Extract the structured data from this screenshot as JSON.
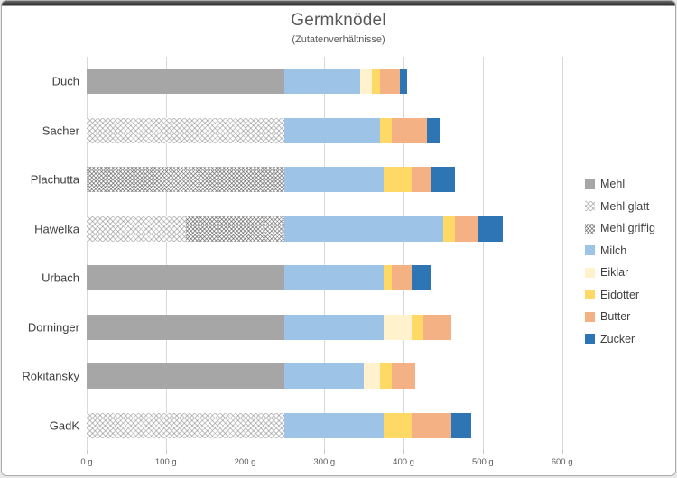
{
  "chart": {
    "title": "Germknödel",
    "subtitle": "(Zutatenverhältnisse)"
  },
  "chart_data": {
    "type": "bar",
    "orientation": "horizontal",
    "stacked": true,
    "title": "Germknödel",
    "subtitle": "(Zutatenverhältnisse)",
    "xlabel": "",
    "ylabel": "",
    "unit": "g",
    "xlim": [
      0,
      605
    ],
    "grid": "vertical-only",
    "gridline_color": "#d9d9d9",
    "legend_position": "right",
    "x_tick_values": [
      0,
      100,
      200,
      300,
      400,
      500,
      600
    ],
    "x_ticks": [
      "0 g",
      "100 g",
      "200 g",
      "300 g",
      "400 g",
      "500 g",
      "600 g"
    ],
    "categories": [
      "Duch",
      "Sacher",
      "Plachutta",
      "Hawelka",
      "Urbach",
      "Dorninger",
      "Rokitansky",
      "GadK"
    ],
    "series": [
      {
        "name": "Mehl",
        "color": "#a6a6a6",
        "pattern": "solid",
        "values": [
          250,
          0,
          0,
          0,
          250,
          250,
          250,
          0
        ]
      },
      {
        "name": "Mehl glatt",
        "color": "#ffffff",
        "pattern": "glatt",
        "values": [
          0,
          250,
          0,
          125,
          0,
          0,
          0,
          250
        ]
      },
      {
        "name": "Mehl griffig",
        "color": "#ffffff",
        "pattern": "griffig",
        "values": [
          0,
          0,
          250,
          125,
          0,
          0,
          0,
          0
        ]
      },
      {
        "name": "Milch",
        "color": "#9dc3e6",
        "pattern": "solid",
        "values": [
          95,
          120,
          125,
          200,
          125,
          125,
          100,
          125
        ]
      },
      {
        "name": "Eiklar",
        "color": "#fff2cc",
        "pattern": "solid",
        "values": [
          15,
          0,
          0,
          0,
          0,
          35,
          20,
          0
        ]
      },
      {
        "name": "Eidotter",
        "color": "#ffd966",
        "pattern": "solid",
        "values": [
          10,
          15,
          35,
          15,
          10,
          15,
          15,
          35
        ]
      },
      {
        "name": "Butter",
        "color": "#f4b183",
        "pattern": "solid",
        "values": [
          25,
          45,
          25,
          30,
          25,
          35,
          30,
          50
        ]
      },
      {
        "name": "Zucker",
        "color": "#2e75b6",
        "pattern": "solid",
        "values": [
          10,
          15,
          30,
          30,
          25,
          0,
          0,
          25
        ]
      }
    ],
    "totals": [
      405,
      445,
      465,
      525,
      435,
      460,
      415,
      485
    ]
  }
}
